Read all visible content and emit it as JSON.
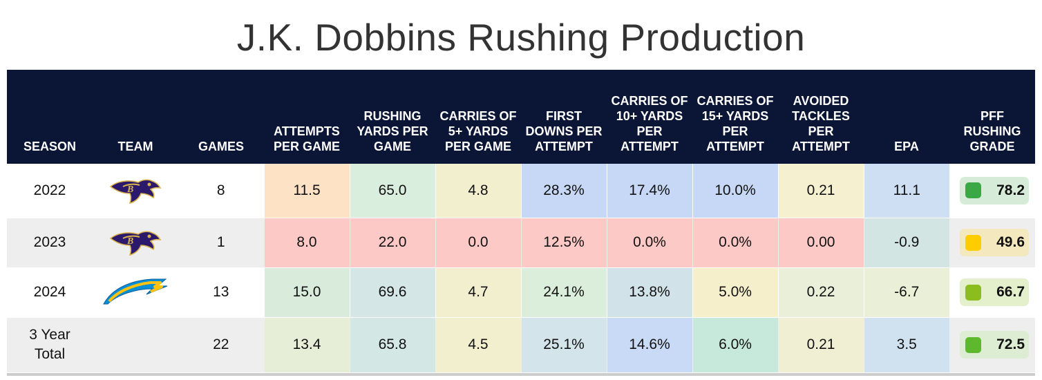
{
  "title": "J.K. Dobbins Rushing Production",
  "columns": [
    "SEASON",
    "TEAM",
    "GAMES",
    "ATTEMPTS PER GAME",
    "RUSHING YARDS PER GAME",
    "CARRIES OF 5+ YARDS PER GAME",
    "FIRST DOWNS PER ATTEMPT",
    "CARRIES OF 10+ YARDS PER ATTEMPT",
    "CARRIES OF 15+ YARDS PER ATTEMPT",
    "AVOIDED TACKLES PER ATTEMPT",
    "EPA",
    "PFF RUSHING GRADE"
  ],
  "rows": [
    {
      "season": "2022",
      "team_logo": "ravens-logo",
      "games": "8",
      "row_bg": "#ffffff",
      "cells": [
        {
          "v": "11.5",
          "bg": "#fde2c6"
        },
        {
          "v": "65.0",
          "bg": "#daeedd"
        },
        {
          "v": "4.8",
          "bg": "#f2efcf"
        },
        {
          "v": "28.3%",
          "bg": "#c6d8f6"
        },
        {
          "v": "17.4%",
          "bg": "#c6d8f6"
        },
        {
          "v": "10.0%",
          "bg": "#c6d8f6"
        },
        {
          "v": "0.21",
          "bg": "#f5f0cf"
        },
        {
          "v": "11.1",
          "bg": "#cfdff3"
        }
      ],
      "grade": {
        "v": "78.2",
        "dot": "#39a845",
        "bg": "#d6ecd8"
      }
    },
    {
      "season": "2023",
      "team_logo": "ravens-logo",
      "games": "1",
      "row_bg": "#eeeeee",
      "cells": [
        {
          "v": "8.0",
          "bg": "#fcc9c6"
        },
        {
          "v": "22.0",
          "bg": "#fcc9c6"
        },
        {
          "v": "0.0",
          "bg": "#fcc9c6"
        },
        {
          "v": "12.5%",
          "bg": "#fcc9c6"
        },
        {
          "v": "0.0%",
          "bg": "#fcc9c6"
        },
        {
          "v": "0.0%",
          "bg": "#fcc9c6"
        },
        {
          "v": "0.00",
          "bg": "#fcc9c6"
        },
        {
          "v": "-0.9",
          "bg": "#d3e5e2"
        }
      ],
      "grade": {
        "v": "49.6",
        "dot": "#ffcc00",
        "bg": "#f3e8be"
      }
    },
    {
      "season": "2024",
      "team_logo": "chargers-logo",
      "games": "13",
      "row_bg": "#ffffff",
      "cells": [
        {
          "v": "15.0",
          "bg": "#d9ecdc"
        },
        {
          "v": "69.6",
          "bg": "#d4e6e6"
        },
        {
          "v": "4.7",
          "bg": "#f2efcf"
        },
        {
          "v": "24.1%",
          "bg": "#dbeedc"
        },
        {
          "v": "13.8%",
          "bg": "#d2e2e9"
        },
        {
          "v": "5.0%",
          "bg": "#f6efcc"
        },
        {
          "v": "0.22",
          "bg": "#e9efd9"
        },
        {
          "v": "-6.7",
          "bg": "#eaf0d7"
        }
      ],
      "grade": {
        "v": "66.7",
        "dot": "#8cbd1f",
        "bg": "#e4efcc"
      }
    },
    {
      "season": "3 Year Total",
      "team_logo": "",
      "games": "22",
      "row_bg": "#eeeeee",
      "cells": [
        {
          "v": "13.4",
          "bg": "#e7eed8"
        },
        {
          "v": "65.8",
          "bg": "#d3e7e4"
        },
        {
          "v": "4.5",
          "bg": "#f2efcf"
        },
        {
          "v": "25.1%",
          "bg": "#d3e4ea"
        },
        {
          "v": "14.6%",
          "bg": "#c8daf6"
        },
        {
          "v": "6.0%",
          "bg": "#c6e9dc"
        },
        {
          "v": "0.21",
          "bg": "#f1efd3"
        },
        {
          "v": "3.5",
          "bg": "#d0e1f0"
        }
      ],
      "grade": {
        "v": "72.5",
        "dot": "#5db82e",
        "bg": "#ddedd3"
      }
    }
  ]
}
